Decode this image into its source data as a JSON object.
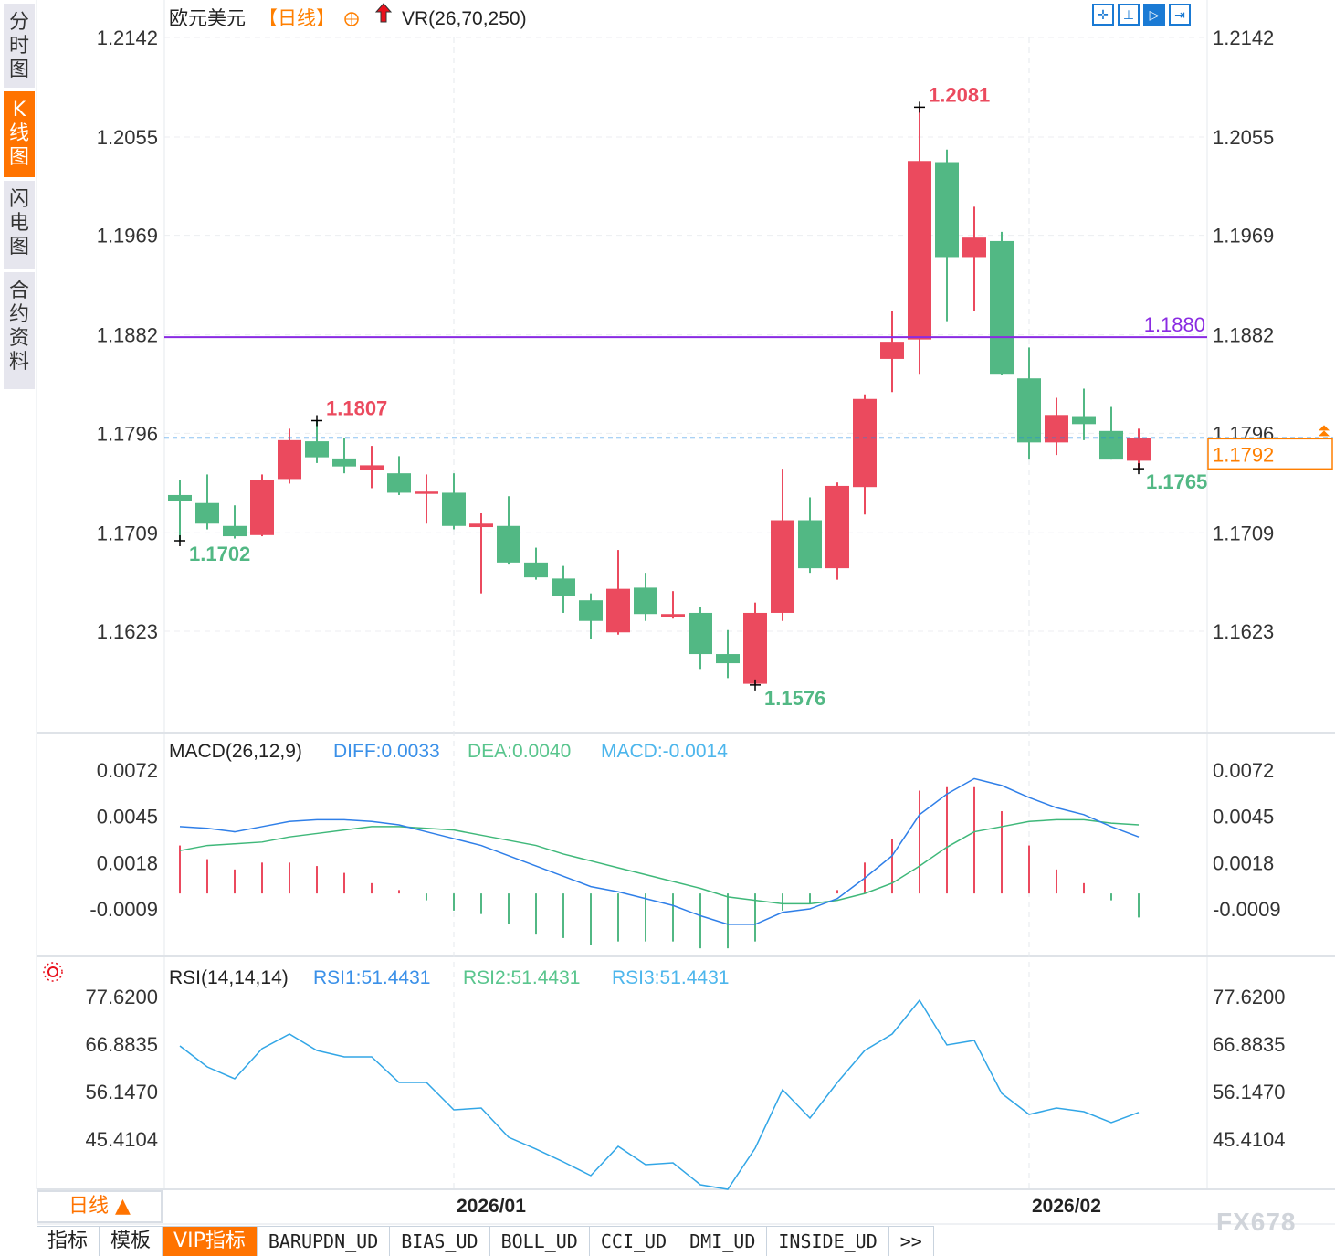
{
  "sidebar": {
    "tabs": [
      {
        "label": "分时图",
        "active": false
      },
      {
        "label": "K线图",
        "active": true
      },
      {
        "label": "闪电图",
        "active": false
      },
      {
        "label": "合约资料",
        "active": false
      }
    ]
  },
  "header": {
    "symbol": "欧元美元",
    "period": "【日线】",
    "indicator": "VR(26,70,250)",
    "icons": [
      "crosshair-circle-icon",
      "red-up-arrow-icon"
    ]
  },
  "toolbar": {
    "icons": [
      "crosshair-icon",
      "fit-chart-icon",
      "play-chart-icon",
      "scroll-right-icon"
    ]
  },
  "colors": {
    "up": "#eb4a5e",
    "down": "#52b884",
    "hline": "#8a2be2",
    "last_price": "#1e88e5",
    "price_box": "#ff7f00",
    "diff": "#2f7fe8",
    "dea": "#3fb87a",
    "rsi": "#32a6e6"
  },
  "chart_data": [
    {
      "type": "candlestick",
      "title": "欧元美元",
      "ylim": [
        1.1623,
        1.2142
      ],
      "yticks": [
        "1.2142",
        "1.2055",
        "1.1969",
        "1.1882",
        "1.1796",
        "1.1709",
        "1.1623"
      ],
      "xtick_labels": [
        {
          "label": "2026/01",
          "index": 10
        },
        {
          "label": "2026/02",
          "index": 31
        }
      ],
      "candles": [
        [
          1.1742,
          1.1755,
          1.1702,
          1.1737
        ],
        [
          1.1735,
          1.176,
          1.1712,
          1.1717
        ],
        [
          1.1715,
          1.1733,
          1.1704,
          1.1706
        ],
        [
          1.1707,
          1.176,
          1.1706,
          1.1755
        ],
        [
          1.1756,
          1.18,
          1.1752,
          1.179
        ],
        [
          1.1789,
          1.1807,
          1.177,
          1.1775
        ],
        [
          1.1774,
          1.1792,
          1.1761,
          1.1767
        ],
        [
          1.1764,
          1.1785,
          1.1748,
          1.1768
        ],
        [
          1.1761,
          1.1776,
          1.1742,
          1.1744
        ],
        [
          1.1743,
          1.176,
          1.1717,
          1.1745
        ],
        [
          1.1744,
          1.1761,
          1.1712,
          1.1715
        ],
        [
          1.1714,
          1.1726,
          1.1656,
          1.1717
        ],
        [
          1.1715,
          1.1741,
          1.1682,
          1.1683
        ],
        [
          1.1683,
          1.1696,
          1.1668,
          1.167
        ],
        [
          1.1669,
          1.168,
          1.1639,
          1.1654
        ],
        [
          1.165,
          1.1656,
          1.1616,
          1.1632
        ],
        [
          1.1622,
          1.1694,
          1.162,
          1.166
        ],
        [
          1.1661,
          1.1674,
          1.1632,
          1.1638
        ],
        [
          1.1635,
          1.1658,
          1.1634,
          1.1638
        ],
        [
          1.1639,
          1.1644,
          1.159,
          1.1603
        ],
        [
          1.1603,
          1.1624,
          1.1582,
          1.1595
        ],
        [
          1.1577,
          1.1648,
          1.1576,
          1.1639
        ],
        [
          1.1639,
          1.1765,
          1.1632,
          1.172
        ],
        [
          1.172,
          1.174,
          1.1674,
          1.1678
        ],
        [
          1.1678,
          1.1753,
          1.1668,
          1.175
        ],
        [
          1.1749,
          1.183,
          1.1725,
          1.1826
        ],
        [
          1.1861,
          1.1903,
          1.1832,
          1.1876
        ],
        [
          1.1878,
          1.2081,
          1.1848,
          1.2034
        ],
        [
          1.2033,
          1.2044,
          1.1894,
          1.195
        ],
        [
          1.195,
          1.1994,
          1.1903,
          1.1967
        ],
        [
          1.1964,
          1.1972,
          1.1847,
          1.1848
        ],
        [
          1.1844,
          1.1871,
          1.1773,
          1.1788
        ],
        [
          1.1788,
          1.1827,
          1.1777,
          1.1812
        ],
        [
          1.1811,
          1.1835,
          1.179,
          1.1804
        ],
        [
          1.1798,
          1.1819,
          1.1773,
          1.1773
        ],
        [
          1.1772,
          1.18,
          1.1765,
          1.1792
        ]
      ],
      "candle_fields": [
        "open",
        "high",
        "low",
        "close"
      ],
      "annotations": {
        "high": {
          "label": "1.2081",
          "index": 27
        },
        "low": {
          "label": "1.1576",
          "index": 21
        },
        "local_high": {
          "label": "1.1807",
          "index": 5
        },
        "local_low": {
          "label": "1.1702",
          "index": 0
        },
        "last_low": {
          "label": "1.1765",
          "index": 35
        }
      },
      "hline": {
        "value": 1.188,
        "label": "1.1880"
      },
      "last_price": {
        "value": 1.1792,
        "label": "1.1792"
      }
    },
    {
      "type": "line+bar",
      "title": "MACD(26,12,9)",
      "legend": {
        "diff": "DIFF:0.0033",
        "dea": "DEA:0.0040",
        "macd": "MACD:-0.0014"
      },
      "ylim": [
        -0.0009,
        0.0072
      ],
      "yticks": [
        "0.0072",
        "0.0045",
        "0.0018",
        "-0.0009"
      ],
      "diff": [
        0.0039,
        0.0038,
        0.0036,
        0.0039,
        0.0042,
        0.0043,
        0.0043,
        0.0042,
        0.004,
        0.0036,
        0.0032,
        0.0028,
        0.0022,
        0.0016,
        0.001,
        0.0004,
        0.0001,
        -0.0003,
        -0.0007,
        -0.0013,
        -0.0018,
        -0.0018,
        -0.0011,
        -0.0009,
        -0.0003,
        0.0009,
        0.0022,
        0.0046,
        0.0058,
        0.0067,
        0.0063,
        0.0056,
        0.005,
        0.0046,
        0.0039,
        0.0033
      ],
      "dea": [
        0.0025,
        0.0028,
        0.0029,
        0.003,
        0.0033,
        0.0035,
        0.0037,
        0.0039,
        0.0039,
        0.0038,
        0.0037,
        0.0034,
        0.0031,
        0.0028,
        0.0023,
        0.0019,
        0.0015,
        0.0011,
        0.0007,
        0.0003,
        -0.0002,
        -0.0004,
        -0.0006,
        -0.0006,
        -0.0004,
        0.0,
        0.0006,
        0.0016,
        0.0027,
        0.0036,
        0.0039,
        0.0042,
        0.0043,
        0.0043,
        0.0041,
        0.004
      ],
      "macd": [
        0.0028,
        0.002,
        0.0014,
        0.0018,
        0.0018,
        0.0016,
        0.0012,
        0.0006,
        0.0002,
        -0.0004,
        -0.001,
        -0.0012,
        -0.0018,
        -0.0024,
        -0.0026,
        -0.003,
        -0.0028,
        -0.0028,
        -0.0028,
        -0.0032,
        -0.0032,
        -0.0028,
        -0.001,
        -0.0006,
        0.0002,
        0.0018,
        0.0032,
        0.006,
        0.0062,
        0.0062,
        0.0048,
        0.0028,
        0.0014,
        0.0006,
        -0.0004,
        -0.0014
      ]
    },
    {
      "type": "line",
      "title": "RSI(14,14,14)",
      "legend": {
        "rsi1": "RSI1:51.4431",
        "rsi2": "RSI2:51.4431",
        "rsi3": "RSI3:51.4431"
      },
      "ylim": [
        45.4104,
        77.62
      ],
      "yticks": [
        "77.6200",
        "66.8835",
        "56.1470",
        "45.4104"
      ],
      "rsi": [
        66.47,
        61.72,
        59.04,
        65.85,
        69.15,
        65.44,
        63.99,
        63.99,
        58.21,
        58.21,
        52.02,
        52.43,
        45.82,
        43.14,
        40.25,
        37.15,
        43.76,
        39.63,
        40.04,
        35.09,
        34.05,
        43.35,
        56.56,
        50.16,
        58.21,
        65.44,
        69.15,
        76.79,
        66.68,
        67.71,
        55.73,
        50.98,
        52.43,
        51.6,
        49.13,
        51.44
      ]
    }
  ],
  "period_selector": {
    "label": "日线 ▲"
  },
  "bottom_tabs": [
    {
      "label": "指标",
      "cn": true
    },
    {
      "label": "模板",
      "cn": true
    },
    {
      "label": "VIP指标",
      "cn": true,
      "active": true
    },
    {
      "label": "BARUPDN_UD"
    },
    {
      "label": "BIAS_UD"
    },
    {
      "label": "BOLL_UD"
    },
    {
      "label": "CCI_UD"
    },
    {
      "label": "DMI_UD"
    },
    {
      "label": "INSIDE_UD"
    },
    {
      "label": ">>"
    }
  ],
  "watermark": "FX678"
}
